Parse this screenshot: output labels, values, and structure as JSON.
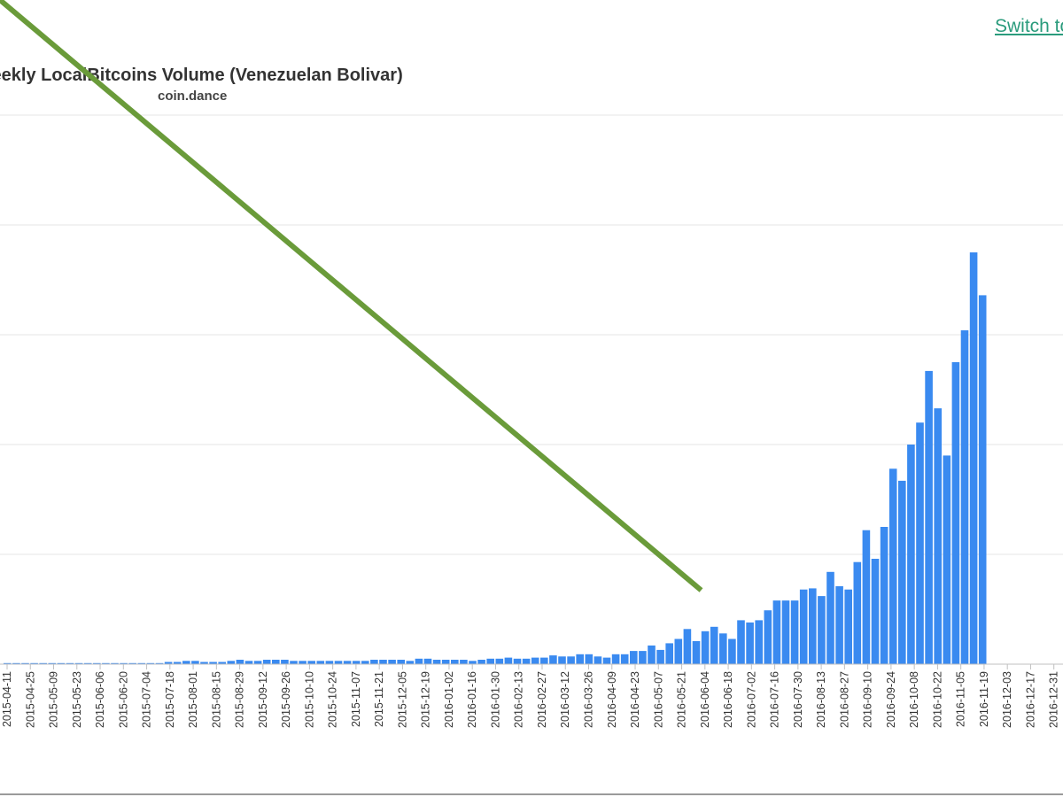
{
  "header": {
    "switch_link_label": "Switch to"
  },
  "colors": {
    "bar": "#3a8af0",
    "grid": "#e6e6e6",
    "axis_line": "#c0c0c0",
    "tick_label": "#333333",
    "arrow": "#6a9b3a",
    "link": "#2a9b7c"
  },
  "chart_data": {
    "type": "bar",
    "title": "Weekly LocalBitcoins Volume (Venezuelan Bolivar)",
    "subtitle": "coin.dance",
    "grid": true,
    "ylim": [
      0,
      500
    ],
    "x_tick_labels": [
      "2015-04-11",
      "2015-04-25",
      "2015-05-09",
      "2015-05-23",
      "2015-06-06",
      "2015-06-20",
      "2015-07-04",
      "2015-07-18",
      "2015-08-01",
      "2015-08-15",
      "2015-08-29",
      "2015-09-12",
      "2015-09-26",
      "2015-10-10",
      "2015-10-24",
      "2015-11-07",
      "2015-11-21",
      "2015-12-05",
      "2015-12-19",
      "2016-01-02",
      "2016-01-16",
      "2016-01-30",
      "2016-02-13",
      "2016-02-27",
      "2016-03-12",
      "2016-03-26",
      "2016-04-09",
      "2016-04-23",
      "2016-05-07",
      "2016-05-21",
      "2016-06-04",
      "2016-06-18",
      "2016-07-02",
      "2016-07-16",
      "2016-07-30",
      "2016-08-13",
      "2016-08-27",
      "2016-09-10",
      "2016-09-24",
      "2016-10-08",
      "2016-10-22",
      "2016-11-05",
      "2016-11-19",
      "2016-12-03",
      "2016-12-17",
      "2016-12-31"
    ],
    "values": [
      1,
      1,
      1,
      1,
      1,
      1,
      1,
      1,
      1,
      1,
      1,
      1,
      1,
      1,
      1,
      1,
      1,
      1,
      2,
      2,
      3,
      3,
      2,
      2,
      2,
      3,
      4,
      3,
      3,
      4,
      4,
      4,
      3,
      3,
      3,
      3,
      3,
      3,
      3,
      3,
      3,
      4,
      4,
      4,
      4,
      3,
      5,
      5,
      4,
      4,
      4,
      4,
      3,
      4,
      5,
      5,
      6,
      5,
      5,
      6,
      6,
      8,
      7,
      7,
      9,
      9,
      7,
      6,
      9,
      9,
      12,
      12,
      17,
      13,
      19,
      23,
      32,
      21,
      30,
      34,
      28,
      23,
      40,
      38,
      40,
      49,
      58,
      58,
      58,
      68,
      69,
      62,
      84,
      71,
      68,
      93,
      122,
      96,
      125,
      178,
      167,
      200,
      220,
      267,
      233,
      190,
      275,
      304,
      375,
      336
    ],
    "annotation": {
      "type": "arrow",
      "from_index": 75,
      "to_index": 117
    }
  }
}
